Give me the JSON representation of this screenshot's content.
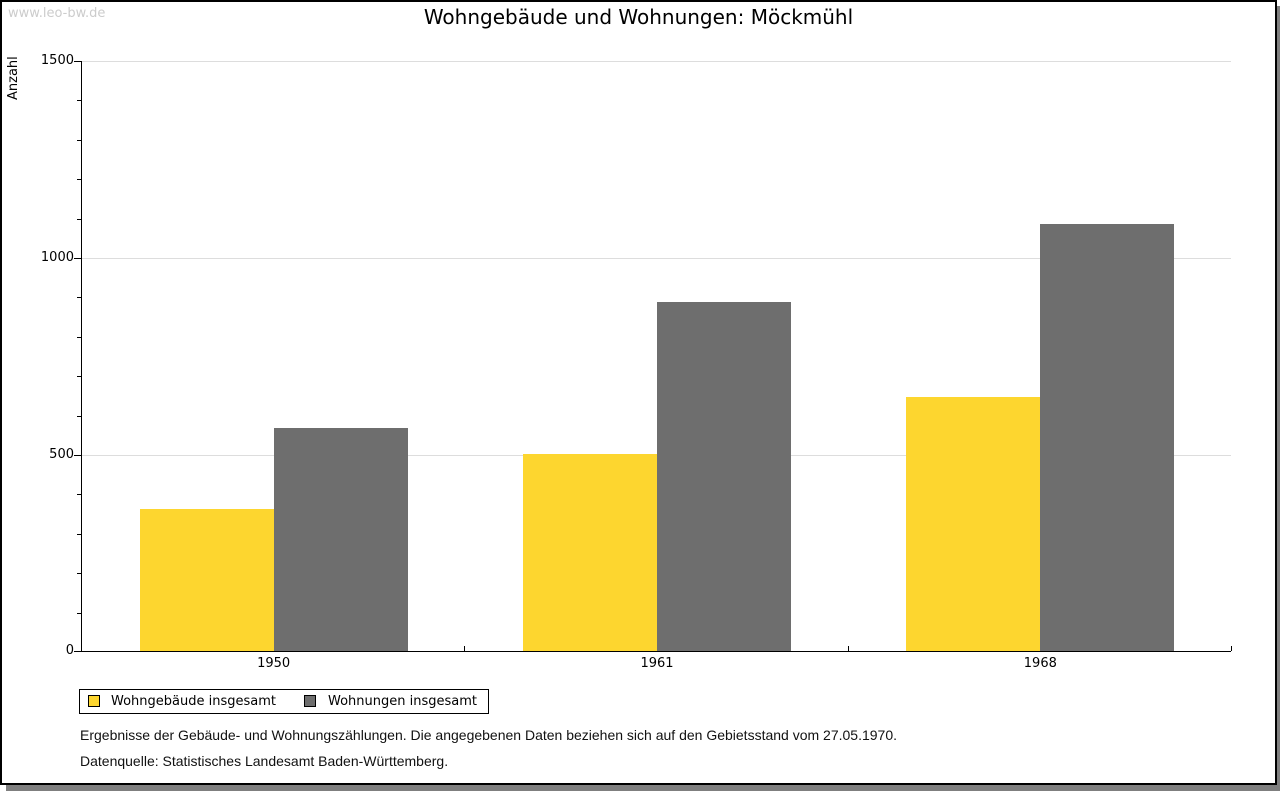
{
  "watermark": "www.leo-bw.de",
  "chart_data": {
    "type": "bar",
    "title": "Wohngebäude und Wohnungen: Möckmühl",
    "ylabel": "Anzahl",
    "xlabel": "",
    "categories": [
      "1950",
      "1961",
      "1968"
    ],
    "series": [
      {
        "name": "Wohngebäude insgesamt",
        "color": "#FDD62F",
        "values": [
          360,
          500,
          645
        ]
      },
      {
        "name": "Wohnungen insgesamt",
        "color": "#6E6E6E",
        "values": [
          565,
          885,
          1085
        ]
      }
    ],
    "ylim": [
      0,
      1500
    ],
    "yticks_major": [
      0,
      500,
      1000,
      1500
    ],
    "ytick_minor_interval": 100,
    "grid": "horizontal-light",
    "gridline_color": "#dddddd",
    "legend_position": "bottom-left"
  },
  "footnotes": {
    "line1": "Ergebnisse der Gebäude- und Wohnungszählungen. Die angegebenen Daten beziehen sich auf den Gebietsstand vom 27.05.1970.",
    "line2": "Datenquelle: Statistisches Landesamt Baden-Württemberg."
  },
  "colors": {
    "page_background": "#ffffff",
    "page_border": "#000000",
    "outer_shadow": "#7f7f7f",
    "watermark": "#cccccc",
    "series_1": "#FDD62F",
    "series_2": "#6E6E6E"
  }
}
